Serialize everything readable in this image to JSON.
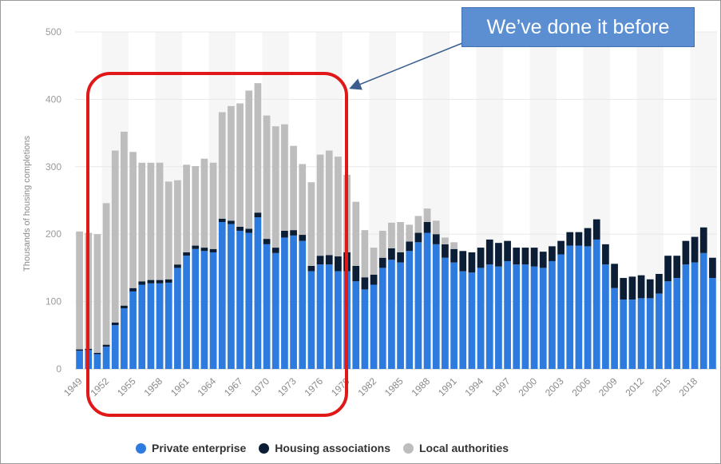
{
  "callout": {
    "text": "We’ve done it before"
  },
  "colors": {
    "private": "#2e7be0",
    "ha": "#0b1e36",
    "la": "#bdbdbd",
    "highlight": "#e01818",
    "callout_bg": "#5b8fd1",
    "arrow": "#3a5f8f"
  },
  "chart_data": {
    "type": "bar",
    "stacked": true,
    "ylabel": "Thousands of housing completions",
    "ylim": [
      0,
      500
    ],
    "yticks": [
      0,
      100,
      200,
      300,
      400,
      500
    ],
    "grid": "horizontal, alternating vertical bands",
    "legend_position": "bottom-center",
    "x": [
      1949,
      1950,
      1951,
      1952,
      1953,
      1954,
      1955,
      1956,
      1957,
      1958,
      1959,
      1960,
      1961,
      1962,
      1963,
      1964,
      1965,
      1966,
      1967,
      1968,
      1969,
      1970,
      1971,
      1972,
      1973,
      1974,
      1975,
      1976,
      1977,
      1978,
      1979,
      1980,
      1981,
      1982,
      1983,
      1984,
      1985,
      1986,
      1987,
      1988,
      1989,
      1990,
      1991,
      1992,
      1993,
      1994,
      1995,
      1996,
      1997,
      1998,
      1999,
      2000,
      2001,
      2002,
      2003,
      2004,
      2005,
      2006,
      2007,
      2008,
      2009,
      2010,
      2011,
      2012,
      2013,
      2014,
      2015,
      2016,
      2017,
      2018,
      2019,
      2020
    ],
    "xtick_labels": [
      "1949",
      "1952",
      "1955",
      "1958",
      "1961",
      "1964",
      "1967",
      "1970",
      "1973",
      "1976",
      "1979",
      "1982",
      "1985",
      "1988",
      "1991",
      "1994",
      "1997",
      "2000",
      "2003",
      "2006",
      "2009",
      "2012",
      "2015",
      "2018"
    ],
    "series": [
      {
        "name": "Private enterprise",
        "values": [
          27,
          28,
          22,
          33,
          65,
          90,
          115,
          125,
          127,
          127,
          128,
          150,
          168,
          178,
          175,
          173,
          218,
          215,
          205,
          202,
          225,
          185,
          172,
          195,
          198,
          190,
          145,
          155,
          155,
          145,
          145,
          130,
          118,
          125,
          150,
          162,
          158,
          175,
          188,
          202,
          185,
          165,
          158,
          145,
          143,
          150,
          155,
          152,
          160,
          155,
          155,
          152,
          150,
          160,
          170,
          183,
          183,
          182,
          192,
          155,
          120,
          103,
          103,
          105,
          105,
          112,
          130,
          135,
          155,
          158,
          172,
          135
        ]
      },
      {
        "name": "Housing associations",
        "values": [
          2,
          2,
          2,
          3,
          4,
          4,
          5,
          5,
          5,
          5,
          5,
          5,
          5,
          5,
          5,
          5,
          5,
          5,
          6,
          6,
          7,
          8,
          8,
          10,
          8,
          9,
          8,
          13,
          14,
          22,
          28,
          23,
          18,
          15,
          15,
          17,
          15,
          14,
          14,
          16,
          15,
          20,
          20,
          30,
          30,
          30,
          37,
          35,
          30,
          25,
          25,
          28,
          24,
          22,
          20,
          20,
          20,
          27,
          30,
          30,
          36,
          32,
          34,
          34,
          28,
          29,
          38,
          33,
          35,
          38,
          38,
          30
        ]
      },
      {
        "name": "Local authorities",
        "values": [
          175,
          172,
          176,
          210,
          255,
          258,
          202,
          176,
          174,
          174,
          145,
          125,
          130,
          118,
          132,
          128,
          158,
          170,
          183,
          205,
          192,
          183,
          180,
          158,
          125,
          105,
          124,
          150,
          155,
          148,
          115,
          95,
          70,
          40,
          40,
          38,
          45,
          25,
          25,
          20,
          20,
          10,
          10,
          0,
          0,
          0,
          0,
          0,
          0,
          0,
          0,
          0,
          0,
          0,
          0,
          0,
          0,
          0,
          0,
          0,
          0,
          0,
          0,
          0,
          0,
          0,
          0,
          0,
          0,
          0,
          0,
          0
        ]
      }
    ]
  }
}
